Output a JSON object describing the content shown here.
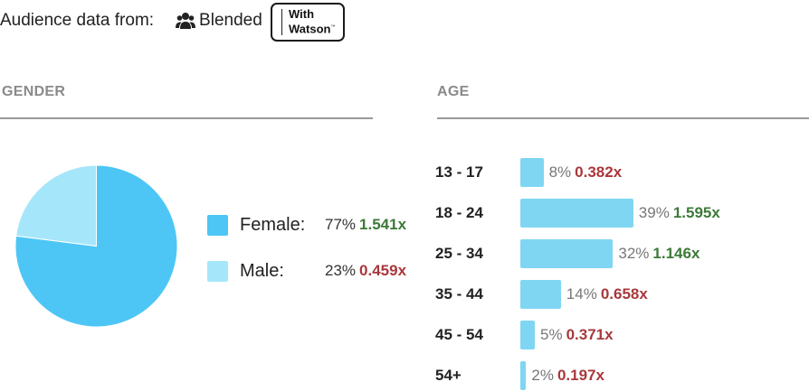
{
  "header": {
    "source_label": "Audience data from:",
    "blended_label": "Blended",
    "watson_line1": "With",
    "watson_line2": "Watson",
    "watson_mark": "™",
    "icon": "group-icon"
  },
  "colors": {
    "female": "#4dc6f5",
    "male": "#a6e6fb",
    "age_bar": "#7ed6f3",
    "index_up": "#3c7a38",
    "index_down": "#a8383c",
    "rule": "#9a9a9a"
  },
  "gender": {
    "title": "GENDER",
    "items": [
      {
        "label": "Female:",
        "pct": "77%",
        "index": "1.541x",
        "trend": "up",
        "value": 77
      },
      {
        "label": "Male:",
        "pct": "23%",
        "index": "0.459x",
        "trend": "down",
        "value": 23
      }
    ]
  },
  "age": {
    "title": "AGE",
    "items": [
      {
        "label": "13 - 17",
        "pct": "8%",
        "index": "0.382x",
        "trend": "down",
        "value": 8
      },
      {
        "label": "18 - 24",
        "pct": "39%",
        "index": "1.595x",
        "trend": "up",
        "value": 39
      },
      {
        "label": "25 - 34",
        "pct": "32%",
        "index": "1.146x",
        "trend": "up",
        "value": 32
      },
      {
        "label": "35 - 44",
        "pct": "14%",
        "index": "0.658x",
        "trend": "down",
        "value": 14
      },
      {
        "label": "45 - 54",
        "pct": "5%",
        "index": "0.371x",
        "trend": "down",
        "value": 5
      },
      {
        "label": "54+",
        "pct": "2%",
        "index": "0.197x",
        "trend": "down",
        "value": 2
      }
    ]
  },
  "chart_data": [
    {
      "type": "pie",
      "title": "GENDER",
      "categories": [
        "Female",
        "Male"
      ],
      "values": [
        77,
        23
      ]
    },
    {
      "type": "bar",
      "title": "AGE",
      "categories": [
        "13 - 17",
        "18 - 24",
        "25 - 34",
        "35 - 44",
        "45 - 54",
        "54+"
      ],
      "values": [
        8,
        39,
        32,
        14,
        5,
        2
      ],
      "index_values": [
        0.382,
        1.595,
        1.146,
        0.658,
        0.371,
        0.197
      ]
    }
  ]
}
